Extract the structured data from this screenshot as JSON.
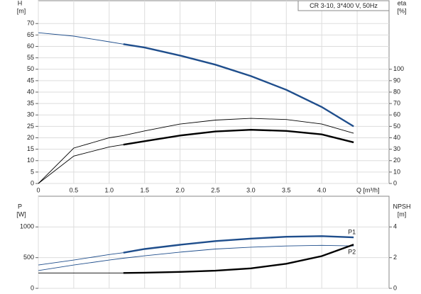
{
  "chart_data": [
    {
      "type": "line",
      "title": "CR 3-10, 3*400 V, 50Hz",
      "ylabel": [
        "H",
        "[m]"
      ],
      "y2label": [
        "eta",
        "[%]"
      ],
      "xlabel": "Q [m³/h]",
      "x": [
        0,
        0.5,
        1.0,
        1.2,
        1.5,
        2.0,
        2.5,
        3.0,
        3.5,
        4.0,
        4.45
      ],
      "series": [
        {
          "color": "#1f4e8c",
          "axis": "y",
          "thick_from": 1.2,
          "values": [
            66,
            64.5,
            62,
            61,
            59.5,
            56,
            52,
            47,
            41,
            33.5,
            25
          ]
        },
        {
          "color": "#000000",
          "axis": "y2",
          "thick_from": null,
          "values": [
            0,
            31,
            40,
            42,
            46,
            52,
            55.5,
            57,
            56,
            52,
            44
          ]
        },
        {
          "color": "#000000",
          "axis": "y2",
          "thick_from": 1.2,
          "values": [
            0,
            24,
            32,
            34,
            37,
            42,
            45.5,
            47,
            46,
            43,
            36
          ]
        }
      ],
      "xlim": [
        0,
        4.95
      ],
      "xticks": [
        0,
        0.5,
        {
          "value": 1,
          "label": "1.0"
        },
        1.5,
        {
          "value": 2,
          "label": "2.0"
        },
        2.5,
        {
          "value": 3,
          "label": "3.0"
        },
        3.5,
        {
          "value": 4,
          "label": "4.0"
        },
        4.5
      ],
      "xtick_labels_shown": 9,
      "ylim": [
        0,
        80
      ],
      "yticks": [
        0,
        5,
        10,
        15,
        20,
        25,
        30,
        35,
        40,
        45,
        50,
        55,
        60,
        65,
        70
      ],
      "y2lim": [
        0,
        160
      ],
      "y2ticks": [
        0,
        10,
        20,
        30,
        40,
        50,
        60,
        70,
        80,
        90,
        100
      ],
      "grid": true
    },
    {
      "type": "line",
      "ylabel": [
        "P",
        "[W]"
      ],
      "y2label": [
        "NPSH",
        "[m]"
      ],
      "x": [
        0,
        0.5,
        1.0,
        1.2,
        1.5,
        2.0,
        2.5,
        3.0,
        3.5,
        4.0,
        4.45
      ],
      "series": [
        {
          "name": "P1",
          "color": "#1f4e8c",
          "axis": "y",
          "thick_from": 1.2,
          "values": [
            380,
            460,
            550,
            580,
            640,
            710,
            770,
            810,
            840,
            850,
            830
          ]
        },
        {
          "name": "P2",
          "color": "#1f4e8c",
          "axis": "y",
          "thick_from": null,
          "values": [
            290,
            380,
            460,
            490,
            530,
            590,
            640,
            670,
            690,
            700,
            690
          ]
        },
        {
          "color": "#000000",
          "axis": "y2",
          "thick_from": 1.2,
          "values": [
            1.0,
            1.0,
            1.0,
            1.0,
            1.02,
            1.07,
            1.15,
            1.3,
            1.6,
            2.1,
            2.85
          ]
        }
      ],
      "xlim": [
        0,
        4.95
      ],
      "xticks": [
        0,
        0.5,
        1,
        1.5,
        2,
        2.5,
        3,
        3.5,
        4,
        4.5
      ],
      "ylim": [
        0,
        1500
      ],
      "yticks": [
        0,
        500,
        1000
      ],
      "y2lim": [
        0,
        6
      ],
      "y2ticks": [
        0,
        2,
        4
      ],
      "grid": true
    }
  ]
}
